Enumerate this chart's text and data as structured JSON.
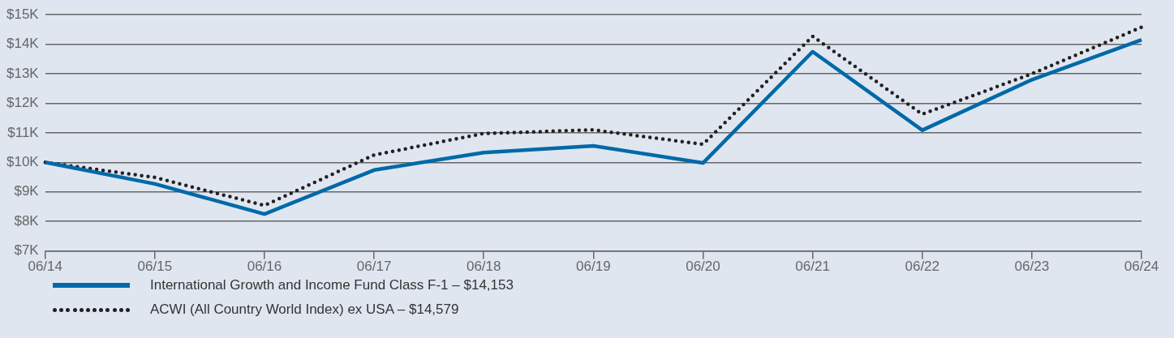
{
  "chart_data": {
    "type": "line",
    "categories": [
      "06/14",
      "06/15",
      "06/16",
      "06/17",
      "06/18",
      "06/19",
      "06/20",
      "06/21",
      "06/22",
      "06/23",
      "06/24"
    ],
    "series": [
      {
        "name": "International Growth and Income Fund Class F-1 – $14,153",
        "color": "#0069a8",
        "line_style": "solid",
        "values": [
          10.0,
          9.27,
          8.25,
          9.74,
          10.33,
          10.56,
          9.98,
          13.75,
          11.09,
          12.8,
          14.153
        ]
      },
      {
        "name": "ACWI (All Country World Index) ex USA – $14,579",
        "color": "#231f20",
        "line_style": "dotted",
        "values": [
          10.0,
          9.49,
          8.54,
          10.25,
          10.98,
          11.1,
          10.61,
          14.27,
          11.63,
          13.0,
          14.579
        ]
      }
    ],
    "ylim": [
      7,
      15
    ],
    "yticks": [
      {
        "value": 7,
        "label": "$7K"
      },
      {
        "value": 8,
        "label": "$8K"
      },
      {
        "value": 9,
        "label": "$9K"
      },
      {
        "value": 10,
        "label": "$10K"
      },
      {
        "value": 11,
        "label": "$11K"
      },
      {
        "value": 12,
        "label": "$12K"
      },
      {
        "value": 13,
        "label": "$13K"
      },
      {
        "value": 14,
        "label": "$14K"
      },
      {
        "value": 15,
        "label": "$15K"
      }
    ],
    "grid": "y",
    "legend": "bottom",
    "marker": "none"
  }
}
